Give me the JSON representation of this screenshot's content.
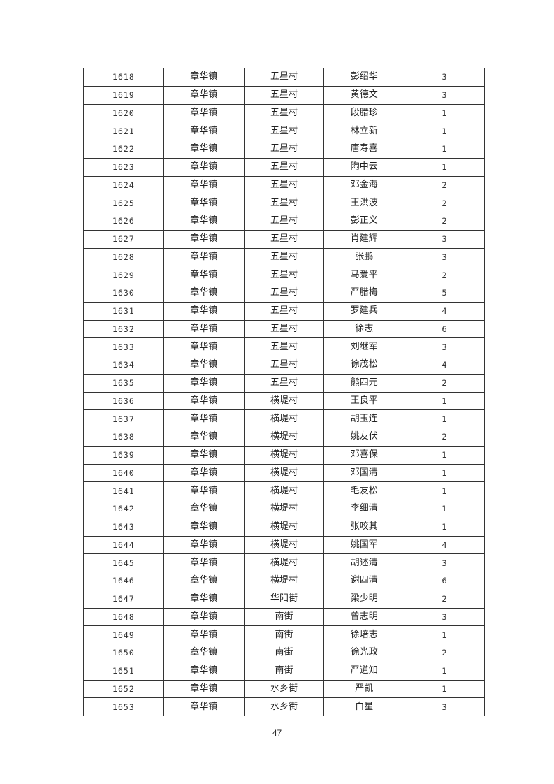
{
  "table": {
    "rows": [
      [
        "1618",
        "章华镇",
        "五星村",
        "彭绍华",
        "3"
      ],
      [
        "1619",
        "章华镇",
        "五星村",
        "黄德文",
        "3"
      ],
      [
        "1620",
        "章华镇",
        "五星村",
        "段腊珍",
        "1"
      ],
      [
        "1621",
        "章华镇",
        "五星村",
        "林立新",
        "1"
      ],
      [
        "1622",
        "章华镇",
        "五星村",
        "唐寿喜",
        "1"
      ],
      [
        "1623",
        "章华镇",
        "五星村",
        "陶中云",
        "1"
      ],
      [
        "1624",
        "章华镇",
        "五星村",
        "邓金海",
        "2"
      ],
      [
        "1625",
        "章华镇",
        "五星村",
        "王洪波",
        "2"
      ],
      [
        "1626",
        "章华镇",
        "五星村",
        "彭正义",
        "2"
      ],
      [
        "1627",
        "章华镇",
        "五星村",
        "肖建辉",
        "3"
      ],
      [
        "1628",
        "章华镇",
        "五星村",
        "张鹏",
        "3"
      ],
      [
        "1629",
        "章华镇",
        "五星村",
        "马爱平",
        "2"
      ],
      [
        "1630",
        "章华镇",
        "五星村",
        "严腊梅",
        "5"
      ],
      [
        "1631",
        "章华镇",
        "五星村",
        "罗建兵",
        "4"
      ],
      [
        "1632",
        "章华镇",
        "五星村",
        "徐志",
        "6"
      ],
      [
        "1633",
        "章华镇",
        "五星村",
        "刘继军",
        "3"
      ],
      [
        "1634",
        "章华镇",
        "五星村",
        "徐茂松",
        "4"
      ],
      [
        "1635",
        "章华镇",
        "五星村",
        "熊四元",
        "2"
      ],
      [
        "1636",
        "章华镇",
        "横堤村",
        "王良平",
        "1"
      ],
      [
        "1637",
        "章华镇",
        "横堤村",
        "胡玉连",
        "1"
      ],
      [
        "1638",
        "章华镇",
        "横堤村",
        "姚友伏",
        "2"
      ],
      [
        "1639",
        "章华镇",
        "横堤村",
        "邓喜保",
        "1"
      ],
      [
        "1640",
        "章华镇",
        "横堤村",
        "邓国清",
        "1"
      ],
      [
        "1641",
        "章华镇",
        "横堤村",
        "毛友松",
        "1"
      ],
      [
        "1642",
        "章华镇",
        "横堤村",
        "李细清",
        "1"
      ],
      [
        "1643",
        "章华镇",
        "横堤村",
        "张咬其",
        "1"
      ],
      [
        "1644",
        "章华镇",
        "横堤村",
        "姚国军",
        "4"
      ],
      [
        "1645",
        "章华镇",
        "横堤村",
        "胡述清",
        "3"
      ],
      [
        "1646",
        "章华镇",
        "横堤村",
        "谢四清",
        "6"
      ],
      [
        "1647",
        "章华镇",
        "华阳街",
        "梁少明",
        "2"
      ],
      [
        "1648",
        "章华镇",
        "南街",
        "曾志明",
        "3"
      ],
      [
        "1649",
        "章华镇",
        "南街",
        "徐培志",
        "1"
      ],
      [
        "1650",
        "章华镇",
        "南街",
        "徐光政",
        "2"
      ],
      [
        "1651",
        "章华镇",
        "南街",
        "严道知",
        "1"
      ],
      [
        "1652",
        "章华镇",
        "水乡街",
        "严凯",
        "1"
      ],
      [
        "1653",
        "章华镇",
        "水乡街",
        "白星",
        "3"
      ]
    ]
  },
  "page_number": "47"
}
